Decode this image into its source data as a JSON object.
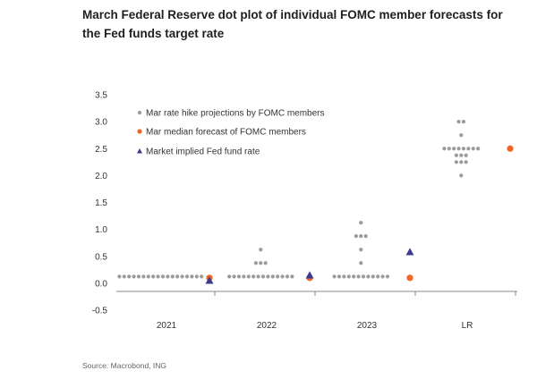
{
  "title": "March Federal Reserve dot plot of individual FOMC member forecasts for the Fed funds target rate",
  "source": "Source: Macrobond, ING",
  "chart_data": {
    "type": "scatter",
    "title": "March Federal Reserve dot plot of individual FOMC member forecasts for the Fed funds target rate",
    "xlabel": "",
    "ylabel": "",
    "ylim": [
      -0.5,
      3.5
    ],
    "yticks": [
      "3.5",
      "3.0",
      "2.5",
      "2.0",
      "1.5",
      "1.0",
      "0.5",
      "0.0",
      "-0.5"
    ],
    "categories": [
      "2021",
      "2022",
      "2023",
      "LR"
    ],
    "grid": false,
    "legend_position": "top-left",
    "colors": {
      "projection": "#9b9b9b",
      "median": "#f26522",
      "market": "#3b3b8f",
      "axis": "#888888"
    },
    "series": [
      {
        "name": "Mar rate hike projections by FOMC members",
        "marker": "dot",
        "groups": [
          {
            "category": "2021",
            "values": [
              {
                "y": 0.125,
                "count": 18
              }
            ]
          },
          {
            "category": "2022",
            "values": [
              {
                "y": 0.625,
                "count": 1
              },
              {
                "y": 0.375,
                "count": 3
              },
              {
                "y": 0.125,
                "count": 14
              }
            ]
          },
          {
            "category": "2023",
            "values": [
              {
                "y": 1.125,
                "count": 1
              },
              {
                "y": 0.875,
                "count": 3
              },
              {
                "y": 0.625,
                "count": 1
              },
              {
                "y": 0.375,
                "count": 1
              },
              {
                "y": 0.125,
                "count": 12
              }
            ]
          },
          {
            "category": "LR",
            "values": [
              {
                "y": 3.0,
                "count": 2
              },
              {
                "y": 2.75,
                "count": 1
              },
              {
                "y": 2.5,
                "count": 8
              },
              {
                "y": 2.375,
                "count": 3
              },
              {
                "y": 2.25,
                "count": 3
              },
              {
                "y": 2.0,
                "count": 1
              }
            ]
          }
        ]
      },
      {
        "name": "Mar median forecast of FOMC members",
        "marker": "circle",
        "points": [
          {
            "category": "2021",
            "y": 0.1
          },
          {
            "category": "2022",
            "y": 0.1
          },
          {
            "category": "2023",
            "y": 0.1
          },
          {
            "category": "LR",
            "y": 2.5
          }
        ]
      },
      {
        "name": "Market implied Fed fund rate",
        "marker": "triangle",
        "points": [
          {
            "category": "2021",
            "y": 0.05
          },
          {
            "category": "2022",
            "y": 0.15
          },
          {
            "category": "2023",
            "y": 0.58
          }
        ]
      }
    ]
  }
}
